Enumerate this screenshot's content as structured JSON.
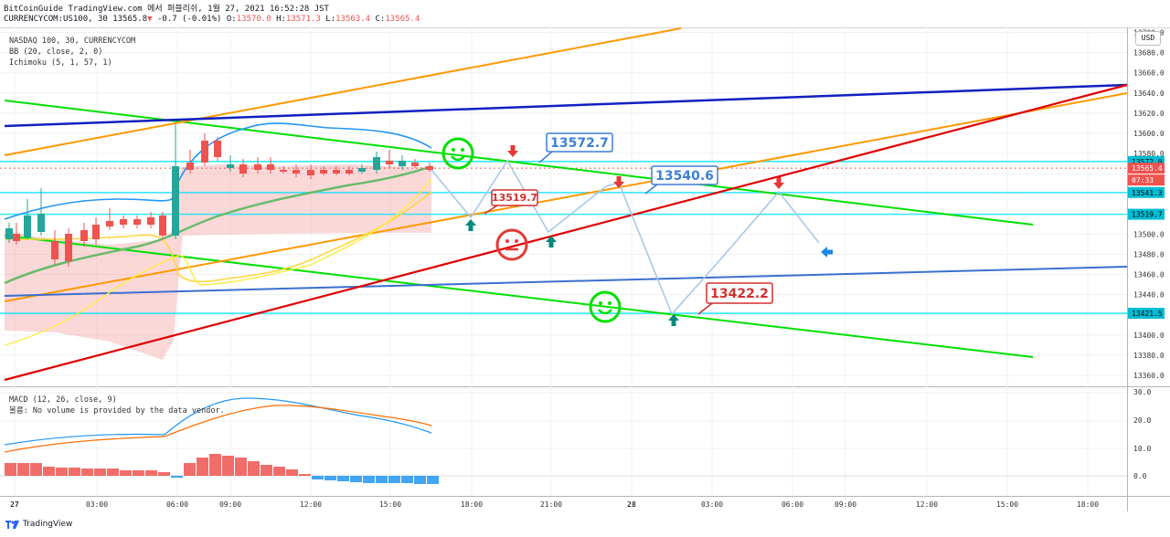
{
  "header": {
    "line1": "BitCoinGuide TradingView.com 에서 퍼블리쉬, 1월 27, 2021 16:52:28 JST",
    "symbol": "CURRENCYCOM:US100, 30",
    "last": "13565.8",
    "change": "-0.7 (-0.01%)",
    "o_label": "O:",
    "o": "13570.0",
    "h_label": "H:",
    "h": "13571.3",
    "l_label": "L:",
    "l": "13563.4",
    "c_label": "C:",
    "c": "13565.4"
  },
  "legend": {
    "title": "NASDAQ 100, 30, CURRENCYCOM",
    "bb": "BB (20, close, 2, 0)",
    "ichimoku": "Ichimoku (5, 1, 57, 1)",
    "macd": "MACD (12, 26, close, 9)",
    "volume_note": "볼륨: No volume is provided by the data vendor."
  },
  "currency_button": "USD",
  "price_axis": [
    "13700.0",
    "13680.0",
    "13660.0",
    "13640.0",
    "13620.0",
    "13600.0",
    "13580.0",
    "13500.0",
    "13480.0",
    "13460.0",
    "13440.0",
    "13400.0",
    "13380.0",
    "13360.0"
  ],
  "price_tags": [
    {
      "value": "13572.0",
      "color": "#00bcd4"
    },
    {
      "value": "13565.4",
      "color": "#ef5350"
    },
    {
      "value": "07:33",
      "color": "#ef5350"
    },
    {
      "value": "13541.3",
      "color": "#00bcd4"
    },
    {
      "value": "13519.7",
      "color": "#00bcd4"
    },
    {
      "value": "13421.5",
      "color": "#00bcd4"
    }
  ],
  "macd_axis": [
    "30.0",
    "20.0",
    "10.0",
    "0.0"
  ],
  "time_axis": [
    "27",
    "03:00",
    "06:00",
    "09:00",
    "12:00",
    "15:00",
    "18:00",
    "21:00",
    "28",
    "03:00",
    "06:00",
    "09:00",
    "12:00",
    "15:00",
    "18:00"
  ],
  "annotations": [
    {
      "text": "13572.7",
      "color": "#3d7fd6"
    },
    {
      "text": "13540.6",
      "color": "#3d7fd6"
    },
    {
      "text": "13519.7",
      "color": "#d32f2f"
    },
    {
      "text": "13422.2",
      "color": "#d32f2f"
    }
  ],
  "brand": "TradingView",
  "colors": {
    "up": "#26a69a",
    "down": "#ef5350",
    "cyan": "#00e5ff",
    "green_line": "#00e000",
    "orange_line": "#ff9800",
    "red_line": "#e00000",
    "blue_line": "#1020c0"
  }
}
